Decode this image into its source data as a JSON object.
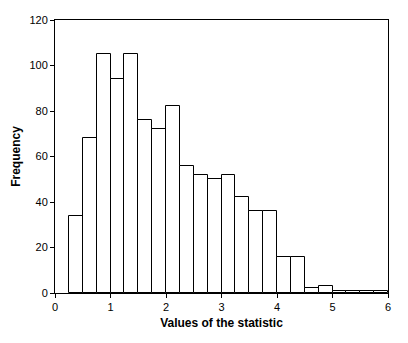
{
  "chart_data": {
    "type": "histogram",
    "x_label": "Values of the statistic",
    "y_label": "Frequency",
    "bins": [
      0.25,
      0.5,
      0.75,
      1.0,
      1.25,
      1.5,
      1.75,
      2.0,
      2.25,
      2.5,
      2.75,
      3.0,
      3.25,
      3.5,
      3.75,
      4.0,
      4.25,
      4.5,
      4.75,
      5.0,
      5.25,
      5.5,
      5.75,
      6.0
    ],
    "values": [
      34,
      68,
      105,
      94,
      105,
      76,
      72,
      82,
      56,
      52,
      50,
      52,
      42,
      36,
      36,
      16,
      16,
      2,
      3,
      1,
      1,
      1,
      1
    ],
    "color": "#ffffff",
    "xlim": [
      0,
      6
    ],
    "xticks": [
      0,
      1,
      2,
      3,
      4,
      5,
      6
    ],
    "ylim": [
      0,
      120
    ],
    "yticks": [
      0,
      20,
      40,
      60,
      80,
      100,
      120
    ],
    "grid": false
  }
}
